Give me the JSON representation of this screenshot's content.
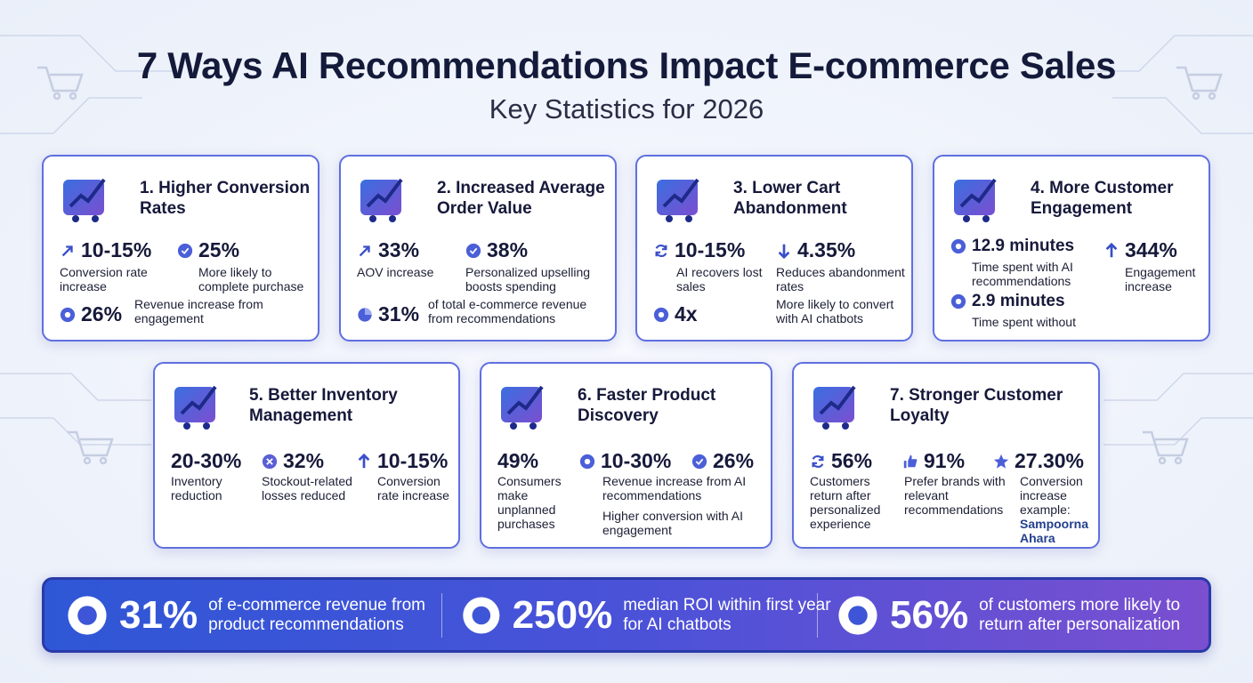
{
  "header": {
    "title": "7 Ways AI Recommendations Impact E-commerce Sales",
    "subtitle": "Key Statistics for 2026"
  },
  "cards": [
    {
      "title": "1. Higher Conversion Rates",
      "stats": [
        {
          "value": "10-15%",
          "label": "Conversion rate increase"
        },
        {
          "value": "25%",
          "label": "More likely to complete purchase"
        },
        {
          "value": "26%",
          "label": "Revenue increase from engagement"
        }
      ]
    },
    {
      "title": "2. Increased Average Order Value",
      "stats": [
        {
          "value": "33%",
          "label": "AOV increase"
        },
        {
          "value": "38%",
          "label": "Personalized upselling boosts spending"
        },
        {
          "value": "31%",
          "label": "of total e-commerce revenue from recommendations"
        }
      ]
    },
    {
      "title": "3. Lower Cart Abandonment",
      "stats": [
        {
          "value": "10-15%",
          "label": "AI recovers lost sales"
        },
        {
          "value": "4.35%",
          "label": "Reduces abandonment rates"
        },
        {
          "value": "4x",
          "label": "More likely to convert with AI chatbots"
        }
      ]
    },
    {
      "title": "4. More Customer Engagement",
      "stats": [
        {
          "value": "12.9 minutes",
          "label": "Time spent with AI recommendations"
        },
        {
          "value": "2.9 minutes",
          "label": "Time spent without"
        },
        {
          "value": "344%",
          "label": "Engagement increase"
        }
      ]
    },
    {
      "title": "5. Better Inventory Management",
      "stats": [
        {
          "value": "20-30%",
          "label": "Inventory reduction"
        },
        {
          "value": "32%",
          "label": "Stockout-related losses reduced"
        },
        {
          "value": "10-15%",
          "label": "Conversion rate increase"
        }
      ]
    },
    {
      "title": "6. Faster Product Discovery",
      "stats": [
        {
          "value": "49%",
          "label": "Consumers make unplanned purchases"
        },
        {
          "value": "10-30%",
          "label": "Revenue increase from AI recommendations"
        },
        {
          "value": "26%",
          "label": "Higher conversion with AI engagement"
        }
      ]
    },
    {
      "title": "7. Stronger Customer Loyalty",
      "stats": [
        {
          "value": "56%",
          "label": "Customers return after personalized experience"
        },
        {
          "value": "91%",
          "label": "Prefer brands with relevant recommendations"
        },
        {
          "value": "27.30%",
          "label": "Conversion increase example:",
          "note": "Sampoorna Ahara"
        }
      ]
    }
  ],
  "banner": [
    {
      "value": "31%",
      "label": "of e-commerce revenue from product recommendations"
    },
    {
      "value": "250%",
      "label": "median ROI within first year for AI chatbots"
    },
    {
      "value": "56%",
      "label": "of customers more likely to return after personalization"
    }
  ]
}
